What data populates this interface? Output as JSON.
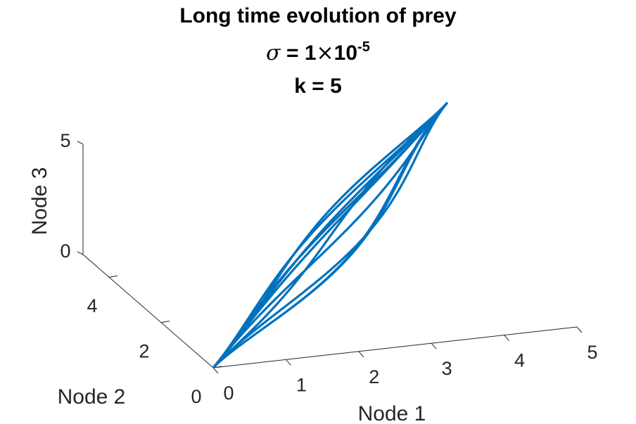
{
  "chart_data": {
    "type": "line",
    "projection": "3d",
    "title_lines": [
      {
        "text": "Long time evolution of prey"
      },
      {
        "sigma_symbol": "σ",
        "equals_one": " = 1",
        "times_symbol": "×",
        "base": "10",
        "exponent": "-5"
      },
      {
        "text": "k = 5"
      }
    ],
    "axes": {
      "x": {
        "label": "Node 1",
        "lim": [
          0,
          5
        ],
        "ticks": [
          0,
          1,
          2,
          3,
          4,
          5
        ],
        "tick_labels": [
          "0",
          "1",
          "2",
          "3",
          "4",
          "5"
        ]
      },
      "y": {
        "label": "Node 2",
        "lim": [
          0,
          5
        ],
        "ticks": [
          0,
          2,
          4
        ],
        "tick_labels": [
          "0",
          "2",
          "4"
        ]
      },
      "z": {
        "label": "Node 3",
        "lim": [
          0,
          5
        ],
        "ticks": [
          0,
          5
        ],
        "tick_labels": [
          "0",
          "5"
        ]
      }
    },
    "grid": false,
    "series": [
      {
        "color": "#0072BD",
        "description_shape": "elongated closed orbits from origin (0,0,0) toward (5,5,5)",
        "orbits": [
          {
            "width": 0.55,
            "twist": 0.0
          },
          {
            "width": 0.45,
            "twist": 0.9
          },
          {
            "width": 0.35,
            "twist": 1.8
          },
          {
            "width": 0.25,
            "twist": 2.7
          },
          {
            "width": 0.15,
            "twist": 3.6
          }
        ],
        "start": [
          0,
          0,
          0
        ],
        "end": [
          5,
          5,
          5
        ]
      }
    ],
    "colors": {
      "axis": "#262626",
      "line": "#0072BD"
    }
  }
}
